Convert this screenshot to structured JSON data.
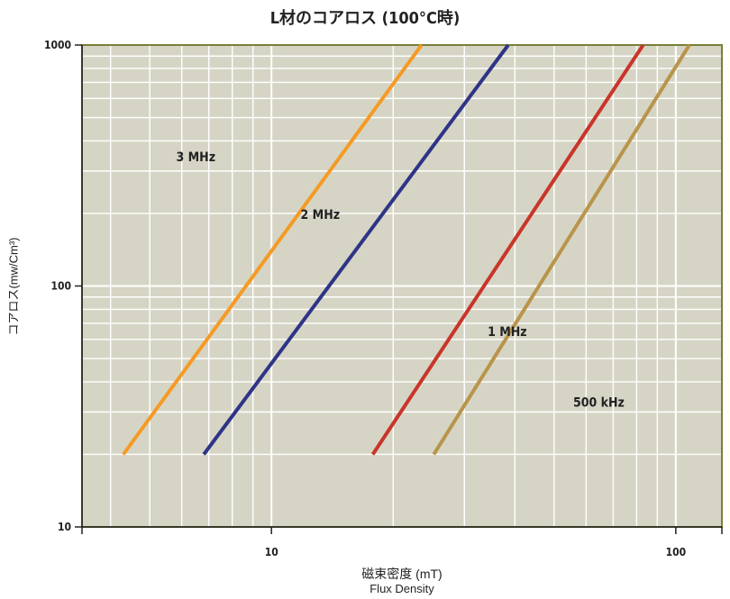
{
  "chart_data": {
    "type": "line",
    "title": "L材のコアロス (100°C時)",
    "xlabel_jp": "磁束密度 (mT)",
    "xlabel_en": "Flux Density",
    "ylabel": "コアロス(mw/Cm³)",
    "x_scale": "log",
    "y_scale": "log",
    "xlim": [
      3.4,
      130
    ],
    "ylim": [
      10,
      1000
    ],
    "x_ticks": [
      {
        "value": 10,
        "label": "10"
      },
      {
        "value": 100,
        "label": "100"
      }
    ],
    "y_ticks": [
      {
        "value": 10,
        "label": "10"
      },
      {
        "value": 100,
        "label": "100"
      },
      {
        "value": 1000,
        "label": "1000"
      }
    ],
    "grid": true,
    "colors": {
      "plot_background": "#d6d5c5",
      "plot_border": "#7a7f35",
      "grid_vertical": "#ffffff",
      "grid_horizontal": "#ffffff"
    },
    "series": [
      {
        "name": "3 MHz",
        "color": "#f59a25",
        "x": [
          4.3,
          23.5
        ],
        "y": [
          20,
          1000
        ]
      },
      {
        "name": "2 MHz",
        "color": "#2e3486",
        "x": [
          6.8,
          38.5
        ],
        "y": [
          20,
          1000
        ]
      },
      {
        "name": "1 MHz",
        "color": "#c9352a",
        "x": [
          17.8,
          83
        ],
        "y": [
          20,
          1000
        ]
      },
      {
        "name": "500 kHz",
        "color": "#b9944a",
        "x": [
          25.2,
          108
        ],
        "y": [
          20,
          1000
        ]
      }
    ]
  }
}
